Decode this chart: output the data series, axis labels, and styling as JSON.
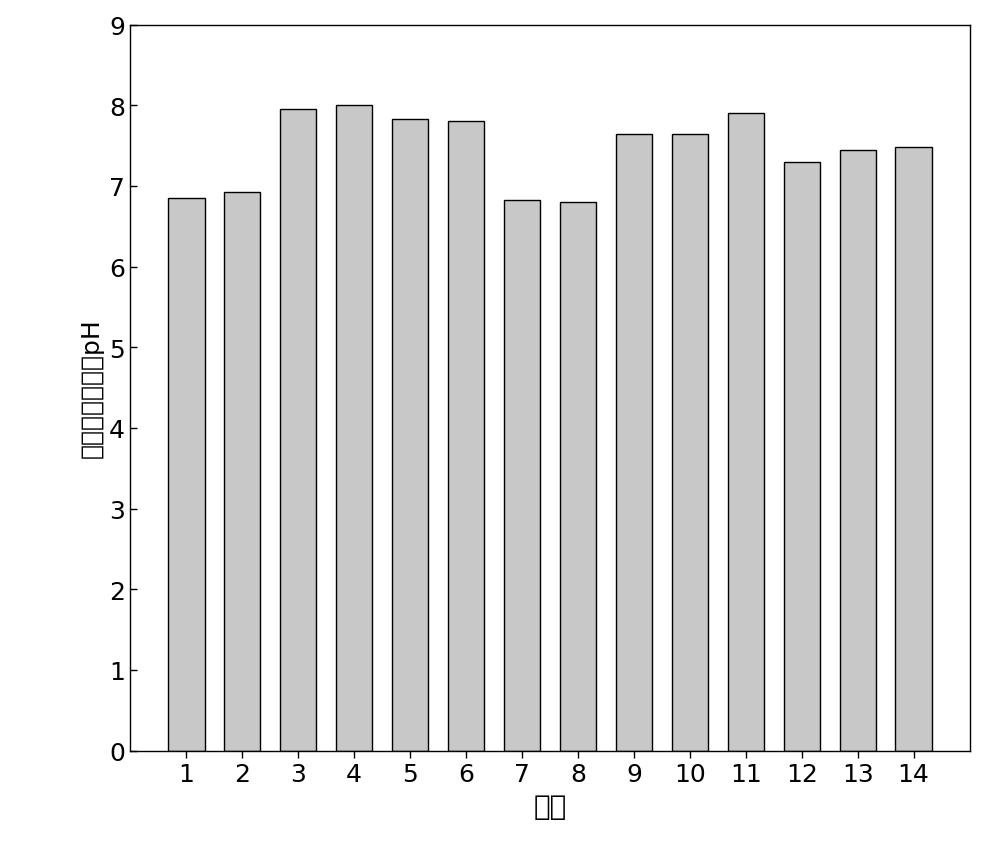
{
  "categories": [
    "1",
    "2",
    "3",
    "4",
    "5",
    "6",
    "7",
    "8",
    "9",
    "10",
    "11",
    "12",
    "13",
    "14"
  ],
  "values": [
    6.85,
    6.92,
    7.95,
    8.0,
    7.83,
    7.8,
    6.82,
    6.8,
    7.65,
    7.65,
    7.9,
    7.3,
    7.45,
    7.48
  ],
  "bar_color": "#c8c8c8",
  "bar_edgecolor": "#000000",
  "xlabel": "处理",
  "ylabel": "修复后各处理组pH",
  "ylim": [
    0,
    9
  ],
  "yticks": [
    0,
    1,
    2,
    3,
    4,
    5,
    6,
    7,
    8,
    9
  ],
  "xlabel_fontsize": 20,
  "ylabel_fontsize": 18,
  "tick_fontsize": 18,
  "bar_linewidth": 1.0,
  "bar_width": 0.65,
  "figure_width": 10.0,
  "figure_height": 8.54,
  "dpi": 100
}
